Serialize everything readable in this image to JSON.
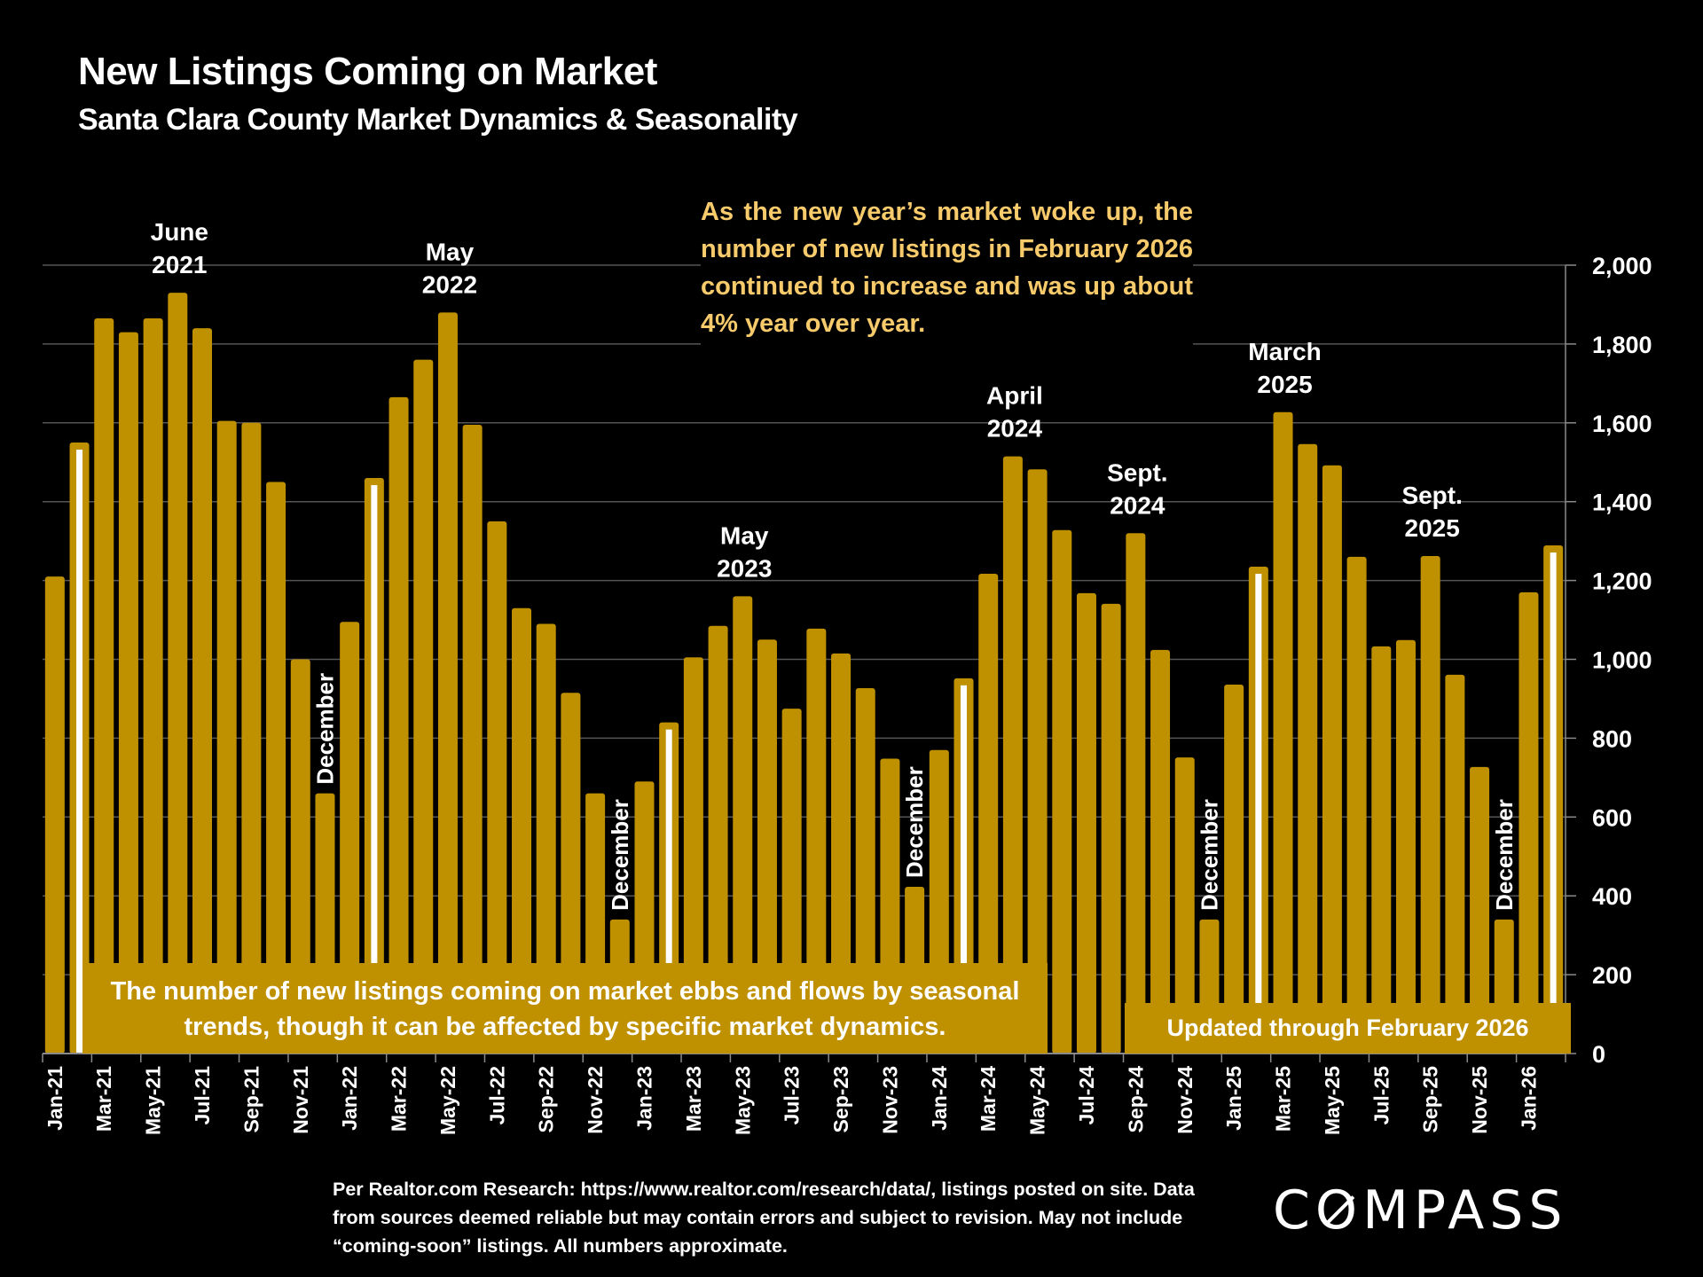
{
  "header": {
    "title": "New Listings Coming on Market",
    "subtitle": "Santa Clara County Market Dynamics & Seasonality"
  },
  "callout": "As the new year’s market woke up, the number of new listings in February 2026 continued to increase and was up about 4% year over year.",
  "box_left": "The number of new listings coming on market ebbs and flows by seasonal trends, though it can be affected by specific market dynamics.",
  "box_right": "Updated through February 2026",
  "footnote": "Per Realtor.com Research:  https://www.realtor.com/research/data/, listings posted on site. Data from sources deemed reliable but may contain errors and subject to revision. May not include “coming-soon” listings. All numbers approximate.",
  "logo": {
    "text_before": "C",
    "text_o": "O",
    "text_after": "MPASS"
  },
  "colors": {
    "bar": "#BF9000",
    "highlight_stripe": "#FFFFFF",
    "callout_text": "#F7CB6B",
    "grid": "#555555",
    "background": "#000000"
  },
  "chart_data": {
    "type": "bar",
    "title": "New Listings Coming on Market",
    "subtitle": "Santa Clara County Market Dynamics & Seasonality",
    "xlabel": "",
    "ylabel": "",
    "ylim": [
      0,
      2000
    ],
    "yticks": [
      0,
      200,
      400,
      600,
      800,
      1000,
      1200,
      1400,
      1600,
      1800,
      2000
    ],
    "ytick_labels": [
      "0",
      "200",
      "400",
      "600",
      "800",
      "1,000",
      "1,200",
      "1,400",
      "1,600",
      "1,800",
      "2,000"
    ],
    "y_axis_side": "right",
    "grid": true,
    "categories": [
      "Jan-21",
      "Feb-21",
      "Mar-21",
      "Apr-21",
      "May-21",
      "Jun-21",
      "Jul-21",
      "Aug-21",
      "Sep-21",
      "Oct-21",
      "Nov-21",
      "Dec-21",
      "Jan-22",
      "Feb-22",
      "Mar-22",
      "Apr-22",
      "May-22",
      "Jun-22",
      "Jul-22",
      "Aug-22",
      "Sep-22",
      "Oct-22",
      "Nov-22",
      "Dec-22",
      "Jan-23",
      "Feb-23",
      "Mar-23",
      "Apr-23",
      "May-23",
      "Jun-23",
      "Jul-23",
      "Aug-23",
      "Sep-23",
      "Oct-23",
      "Nov-23",
      "Dec-23",
      "Jan-24",
      "Feb-24",
      "Mar-24",
      "Apr-24",
      "May-24",
      "Jun-24",
      "Jul-24",
      "Aug-24",
      "Sep-24",
      "Oct-24",
      "Nov-24",
      "Dec-24",
      "Jan-25",
      "Feb-25",
      "Mar-25",
      "Apr-25",
      "May-25",
      "Jun-25",
      "Jul-25",
      "Aug-25",
      "Sep-25",
      "Oct-25",
      "Nov-25",
      "Dec-25",
      "Jan-26",
      "Feb-26"
    ],
    "values": [
      1210,
      1550,
      1865,
      1830,
      1865,
      1930,
      1840,
      1605,
      1600,
      1450,
      1000,
      660,
      1095,
      1460,
      1665,
      1760,
      1880,
      1595,
      1350,
      1130,
      1090,
      915,
      660,
      340,
      690,
      840,
      1005,
      1085,
      1160,
      1050,
      875,
      1078,
      1015,
      927,
      748,
      423,
      770,
      952,
      1217,
      1515,
      1482,
      1328,
      1168,
      1141,
      1320,
      1024,
      751,
      340,
      936,
      1235,
      1627,
      1546,
      1492,
      1260,
      1033,
      1049,
      1262,
      961,
      727,
      340,
      1170,
      1289
    ],
    "highlighted": [
      "Feb-21",
      "Feb-22",
      "Feb-23",
      "Feb-24",
      "Feb-25",
      "Feb-26"
    ],
    "xtick_labels_shown": [
      "Jan-21",
      "Mar-21",
      "May-21",
      "Jul-21",
      "Sep-21",
      "Nov-21",
      "Jan-22",
      "Mar-22",
      "May-22",
      "Jul-22",
      "Sep-22",
      "Nov-22",
      "Jan-23",
      "Mar-23",
      "May-23",
      "Jul-23",
      "Sep-23",
      "Nov-23",
      "Jan-24",
      "Mar-24",
      "May-24",
      "Jul-24",
      "Sep-24",
      "Nov-24",
      "Jan-25",
      "Mar-25",
      "May-25",
      "Jul-25",
      "Sep-25",
      "Nov-25",
      "Jan-26"
    ],
    "annotations": [
      {
        "target": "Jun-21",
        "text": [
          "June",
          "2021"
        ],
        "orientation": "horizontal"
      },
      {
        "target": "May-22",
        "text": [
          "May",
          "2022"
        ],
        "orientation": "horizontal"
      },
      {
        "target": "May-23",
        "text": [
          "May",
          "2023"
        ],
        "orientation": "horizontal"
      },
      {
        "target": "Apr-24",
        "text": [
          "April",
          "2024"
        ],
        "orientation": "horizontal"
      },
      {
        "target": "Sep-24",
        "text": [
          "Sept.",
          "2024"
        ],
        "orientation": "horizontal"
      },
      {
        "target": "Mar-25",
        "text": [
          "March",
          "2025"
        ],
        "orientation": "horizontal"
      },
      {
        "target": "Sep-25",
        "text": [
          "Sept.",
          "2025"
        ],
        "orientation": "horizontal"
      },
      {
        "target": "Dec-21",
        "text": [
          "December"
        ],
        "orientation": "vertical"
      },
      {
        "target": "Dec-22",
        "text": [
          "December"
        ],
        "orientation": "vertical"
      },
      {
        "target": "Dec-23",
        "text": [
          "December"
        ],
        "orientation": "vertical"
      },
      {
        "target": "Dec-24",
        "text": [
          "December"
        ],
        "orientation": "vertical"
      },
      {
        "target": "Dec-25",
        "text": [
          "December"
        ],
        "orientation": "vertical"
      }
    ]
  }
}
